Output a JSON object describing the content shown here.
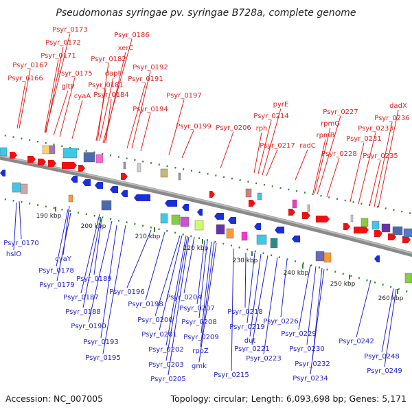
{
  "title": "Pseudomonas syringae pv. syringae B728a, complete genome",
  "footer": {
    "accession": "Accession: NC_007005",
    "summary": "Topology: circular; Length: 6,093,698 bp; Genes: 5,171"
  },
  "colors": {
    "forward_label": "#e0201c",
    "reverse_label": "#2222cc",
    "backbone": "#8a8a8a",
    "tick": "#2a8a2a"
  },
  "ticks": [
    "190 kbp",
    "200 kbp",
    "210 kbp",
    "220 kbp",
    "230 kbp",
    "240 kbp",
    "250 kbp",
    "260 kbp"
  ],
  "top_labels": [
    "Psyr_0173",
    "Psyr_0172",
    "Psyr_0171",
    "Psyr_0167",
    "Psyr_0166",
    "Psyr_0175",
    "gltP",
    "cyaA",
    "Psyr_0186",
    "xerC",
    "Psyr_0182",
    "dapF",
    "Psyr_0181",
    "Psyr_0184",
    "Psyr_0192",
    "Psyr_0191",
    "Psyr_0194",
    "Psyr_0197",
    "Psyr_0199",
    "Psyr_0206",
    "pyrE",
    "Psyr_0214",
    "rph",
    "Psyr_0217",
    "radC",
    "Psyr_0227",
    "rpmG",
    "rpmB",
    "Psyr_0228",
    "Psyr_0231",
    "Psyr_0233",
    "Psyr_0235",
    "dadX",
    "Psyr_0236"
  ],
  "bottom_labels": [
    "Psyr_0170",
    "hslO",
    "cyaY",
    "Psyr_0178",
    "Psyr_0179",
    "Psyr_0189",
    "Psyr_0187",
    "Psyr_0188",
    "Psyr_0190",
    "Psyr_0193",
    "Psyr_0195",
    "Psyr_0196",
    "Psyr_0198",
    "Psyr_0200",
    "Psyr_0201",
    "Psyr_0202",
    "Psyr_0203",
    "Psyr_0205",
    "Psyr_0204",
    "Psyr_0207",
    "Psyr_0208",
    "Psyr_0209",
    "rpoZ",
    "gmk",
    "Psyr_0215",
    "Psyr_0218",
    "Psyr_0219",
    "dut",
    "Psyr_0221",
    "Psyr_0223",
    "Psyr_0226",
    "Psyr_0229",
    "Psyr_0230",
    "Psyr_0232",
    "Psyr_0234",
    "Psyr_0242",
    "Psyr_0248",
    "Psyr_0249"
  ]
}
